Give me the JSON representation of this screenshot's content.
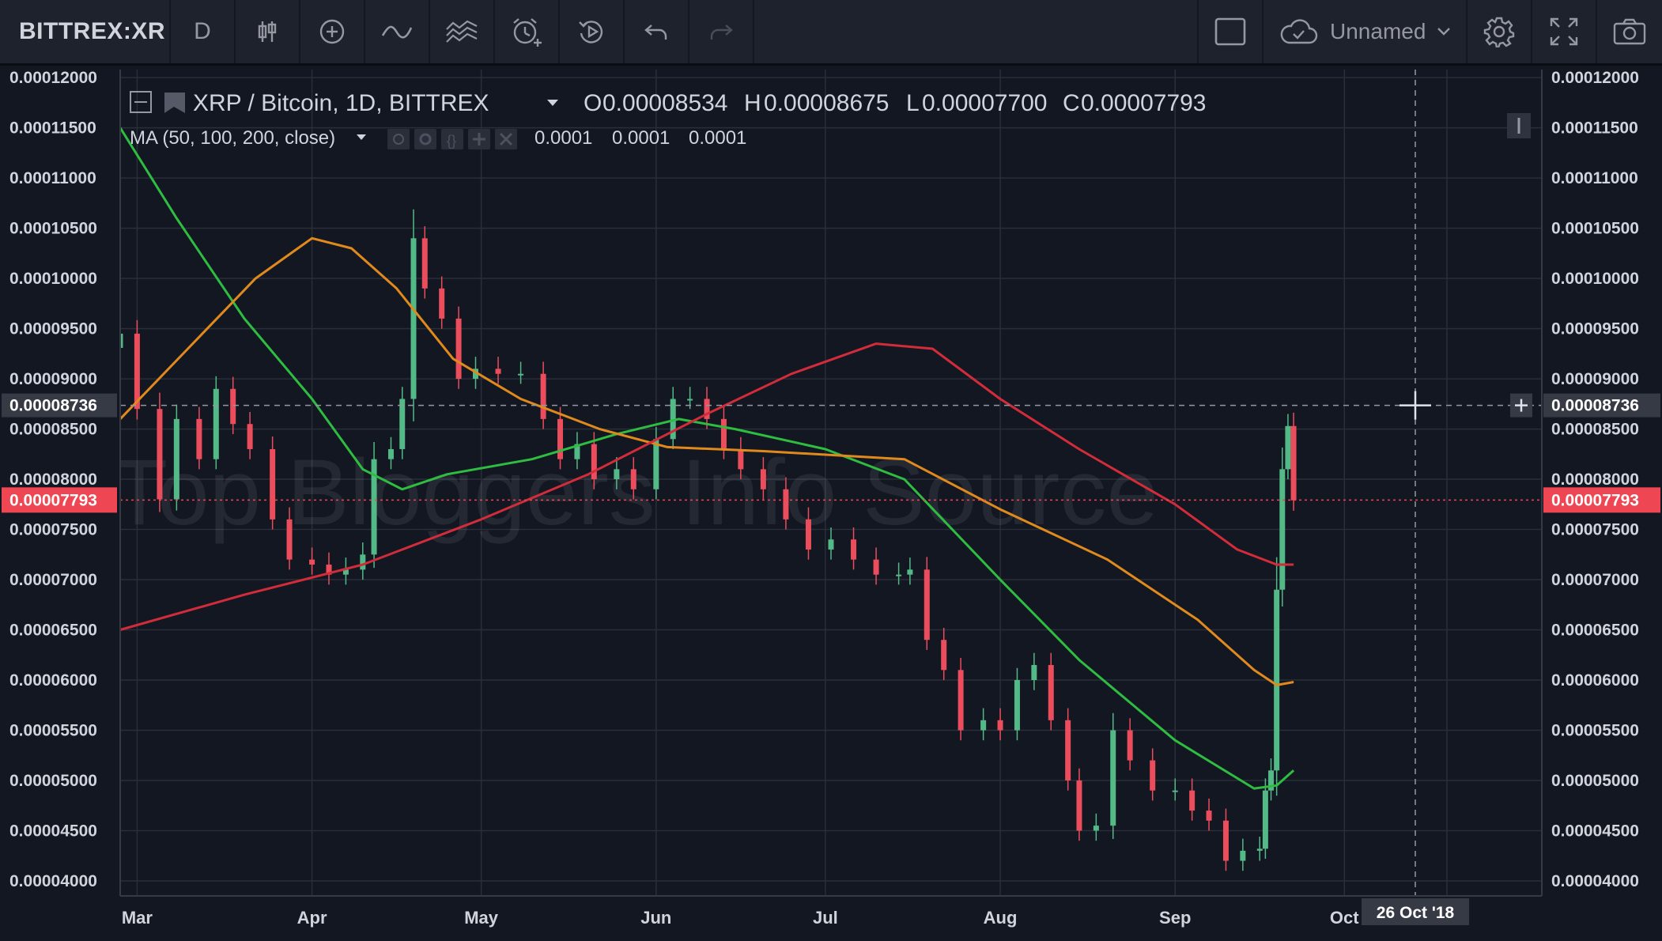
{
  "toolbar": {
    "symbol": "BITTREX:XR",
    "interval": "D",
    "layout_name": "Unnamed"
  },
  "legend": {
    "title": "XRP / Bitcoin, 1D, BITTREX",
    "ohlc": [
      {
        "label": "O",
        "value": "0.00008534"
      },
      {
        "label": "H",
        "value": "0.00008675"
      },
      {
        "label": "L",
        "value": "0.00007700"
      },
      {
        "label": "C",
        "value": "0.00007793"
      }
    ],
    "ma_label": "MA (50, 100, 200, close)",
    "ma_values": [
      {
        "value": "0.0001",
        "color": "#2ebd40"
      },
      {
        "value": "0.0001",
        "color": "#e08a1e"
      },
      {
        "value": "0.0001",
        "color": "#e8233a"
      }
    ]
  },
  "watermark": "Top Bloggers Info Source",
  "crosshair": {
    "price_label": "0.00008736",
    "date_label": "26 Oct '18"
  },
  "last_price_label": "0.00007793",
  "colors": {
    "background": "#131722",
    "grid": "#2a2e39",
    "up": "#53b987",
    "down": "#eb4d5c",
    "ma50": "#2ebd40",
    "ma100": "#e08a1e",
    "ma200": "#d12c3a",
    "last_price": "#ef4653",
    "value_red": "#ef4653"
  },
  "chart_data": {
    "type": "candlestick",
    "y_axis_labels": [
      "0.00012000",
      "0.00011500",
      "0.00011000",
      "0.00010500",
      "0.00010000",
      "0.00009500",
      "0.00009000",
      "0.00008500",
      "0.00008000",
      "0.00007500",
      "0.00007000",
      "0.00006500",
      "0.00006000",
      "0.00005500",
      "0.00005000",
      "0.00004500",
      "0.00004000"
    ],
    "ylim": [
      3.85e-05,
      0.0001208
    ],
    "x_axis_labels": [
      {
        "label": "Mar",
        "date": "2018-03-01"
      },
      {
        "label": "Apr",
        "date": "2018-04-01"
      },
      {
        "label": "May",
        "date": "2018-05-01"
      },
      {
        "label": "Jun",
        "date": "2018-06-01"
      },
      {
        "label": "Jul",
        "date": "2018-07-01"
      },
      {
        "label": "Aug",
        "date": "2018-08-01"
      },
      {
        "label": "Sep",
        "date": "2018-09-01"
      },
      {
        "label": "Oct",
        "date": "2018-10-01"
      }
    ],
    "xlim": [
      "2018-02-26",
      "2018-11-05"
    ],
    "grid": true,
    "close_series": [
      [
        "2018-02-26",
        9.45e-05
      ],
      [
        "2018-03-01",
        8.7e-05
      ],
      [
        "2018-03-05",
        7.8e-05
      ],
      [
        "2018-03-08",
        8.6e-05
      ],
      [
        "2018-03-12",
        8.2e-05
      ],
      [
        "2018-03-15",
        8.9e-05
      ],
      [
        "2018-03-18",
        8.55e-05
      ],
      [
        "2018-03-21",
        8.3e-05
      ],
      [
        "2018-03-25",
        7.6e-05
      ],
      [
        "2018-03-28",
        7.2e-05
      ],
      [
        "2018-04-01",
        7.15e-05
      ],
      [
        "2018-04-04",
        7.05e-05
      ],
      [
        "2018-04-07",
        7.1e-05
      ],
      [
        "2018-04-10",
        7.25e-05
      ],
      [
        "2018-04-12",
        8.2e-05
      ],
      [
        "2018-04-15",
        8.3e-05
      ],
      [
        "2018-04-17",
        8.8e-05
      ],
      [
        "2018-04-19",
        0.000104
      ],
      [
        "2018-04-21",
        9.9e-05
      ],
      [
        "2018-04-24",
        9.6e-05
      ],
      [
        "2018-04-27",
        9e-05
      ],
      [
        "2018-04-30",
        9.1e-05
      ],
      [
        "2018-05-04",
        9.05e-05
      ],
      [
        "2018-05-08",
        9.05e-05
      ],
      [
        "2018-05-12",
        8.6e-05
      ],
      [
        "2018-05-15",
        8.2e-05
      ],
      [
        "2018-05-18",
        8.35e-05
      ],
      [
        "2018-05-21",
        8e-05
      ],
      [
        "2018-05-25",
        8.1e-05
      ],
      [
        "2018-05-28",
        7.9e-05
      ],
      [
        "2018-06-01",
        8.4e-05
      ],
      [
        "2018-06-04",
        8.8e-05
      ],
      [
        "2018-06-07",
        8.8e-05
      ],
      [
        "2018-06-10",
        8.6e-05
      ],
      [
        "2018-06-13",
        8.3e-05
      ],
      [
        "2018-06-16",
        8.1e-05
      ],
      [
        "2018-06-20",
        7.9e-05
      ],
      [
        "2018-06-24",
        7.6e-05
      ],
      [
        "2018-06-28",
        7.3e-05
      ],
      [
        "2018-07-02",
        7.4e-05
      ],
      [
        "2018-07-06",
        7.2e-05
      ],
      [
        "2018-07-10",
        7.05e-05
      ],
      [
        "2018-07-14",
        7.05e-05
      ],
      [
        "2018-07-16",
        7.1e-05
      ],
      [
        "2018-07-19",
        6.4e-05
      ],
      [
        "2018-07-22",
        6.1e-05
      ],
      [
        "2018-07-25",
        5.5e-05
      ],
      [
        "2018-07-29",
        5.6e-05
      ],
      [
        "2018-08-01",
        5.5e-05
      ],
      [
        "2018-08-04",
        6e-05
      ],
      [
        "2018-08-07",
        6.15e-05
      ],
      [
        "2018-08-10",
        5.6e-05
      ],
      [
        "2018-08-13",
        5e-05
      ],
      [
        "2018-08-15",
        4.5e-05
      ],
      [
        "2018-08-18",
        4.55e-05
      ],
      [
        "2018-08-21",
        5.5e-05
      ],
      [
        "2018-08-24",
        5.2e-05
      ],
      [
        "2018-08-28",
        4.9e-05
      ],
      [
        "2018-09-01",
        4.9e-05
      ],
      [
        "2018-09-04",
        4.7e-05
      ],
      [
        "2018-09-07",
        4.6e-05
      ],
      [
        "2018-09-10",
        4.2e-05
      ],
      [
        "2018-09-13",
        4.3e-05
      ],
      [
        "2018-09-16",
        4.32e-05
      ],
      [
        "2018-09-17",
        4.9e-05
      ],
      [
        "2018-09-18",
        5.1e-05
      ],
      [
        "2018-09-19",
        6.9e-05
      ],
      [
        "2018-09-20",
        8.1e-05
      ],
      [
        "2018-09-21",
        8.53e-05
      ],
      [
        "2018-09-22",
        7.79e-05
      ]
    ],
    "series": [
      {
        "name": "MA 50",
        "values": [
          [
            "2018-02-26",
            0.000115
          ],
          [
            "2018-03-08",
            0.000106
          ],
          [
            "2018-03-20",
            9.6e-05
          ],
          [
            "2018-04-01",
            8.8e-05
          ],
          [
            "2018-04-10",
            8.1e-05
          ],
          [
            "2018-04-17",
            7.9e-05
          ],
          [
            "2018-04-25",
            8.05e-05
          ],
          [
            "2018-05-10",
            8.2e-05
          ],
          [
            "2018-05-25",
            8.45e-05
          ],
          [
            "2018-06-05",
            8.6e-05
          ],
          [
            "2018-06-15",
            8.5e-05
          ],
          [
            "2018-07-01",
            8.3e-05
          ],
          [
            "2018-07-15",
            8e-05
          ],
          [
            "2018-08-01",
            7e-05
          ],
          [
            "2018-08-15",
            6.2e-05
          ],
          [
            "2018-09-01",
            5.4e-05
          ],
          [
            "2018-09-15",
            4.92e-05
          ],
          [
            "2018-09-19",
            4.95e-05
          ],
          [
            "2018-09-22",
            5.1e-05
          ]
        ]
      },
      {
        "name": "MA 100",
        "values": [
          [
            "2018-02-26",
            8.6e-05
          ],
          [
            "2018-03-10",
            9.3e-05
          ],
          [
            "2018-03-22",
            0.0001
          ],
          [
            "2018-04-01",
            0.000104
          ],
          [
            "2018-04-08",
            0.000103
          ],
          [
            "2018-04-16",
            9.9e-05
          ],
          [
            "2018-04-26",
            9.2e-05
          ],
          [
            "2018-05-08",
            8.8e-05
          ],
          [
            "2018-05-22",
            8.5e-05
          ],
          [
            "2018-06-03",
            8.32e-05
          ],
          [
            "2018-06-20",
            8.28e-05
          ],
          [
            "2018-07-15",
            8.2e-05
          ],
          [
            "2018-08-01",
            7.7e-05
          ],
          [
            "2018-08-20",
            7.2e-05
          ],
          [
            "2018-09-05",
            6.6e-05
          ],
          [
            "2018-09-15",
            6.1e-05
          ],
          [
            "2018-09-19",
            5.95e-05
          ],
          [
            "2018-09-22",
            5.98e-05
          ]
        ]
      },
      {
        "name": "MA 200",
        "values": [
          [
            "2018-02-26",
            6.5e-05
          ],
          [
            "2018-03-20",
            6.85e-05
          ],
          [
            "2018-04-10",
            7.15e-05
          ],
          [
            "2018-05-01",
            7.6e-05
          ],
          [
            "2018-05-20",
            8.05e-05
          ],
          [
            "2018-06-10",
            8.65e-05
          ],
          [
            "2018-06-25",
            9.05e-05
          ],
          [
            "2018-07-10",
            9.35e-05
          ],
          [
            "2018-07-20",
            9.3e-05
          ],
          [
            "2018-08-01",
            8.8e-05
          ],
          [
            "2018-08-15",
            8.3e-05
          ],
          [
            "2018-09-01",
            7.75e-05
          ],
          [
            "2018-09-12",
            7.3e-05
          ],
          [
            "2018-09-19",
            7.15e-05
          ],
          [
            "2018-09-22",
            7.15e-05
          ]
        ]
      }
    ]
  }
}
